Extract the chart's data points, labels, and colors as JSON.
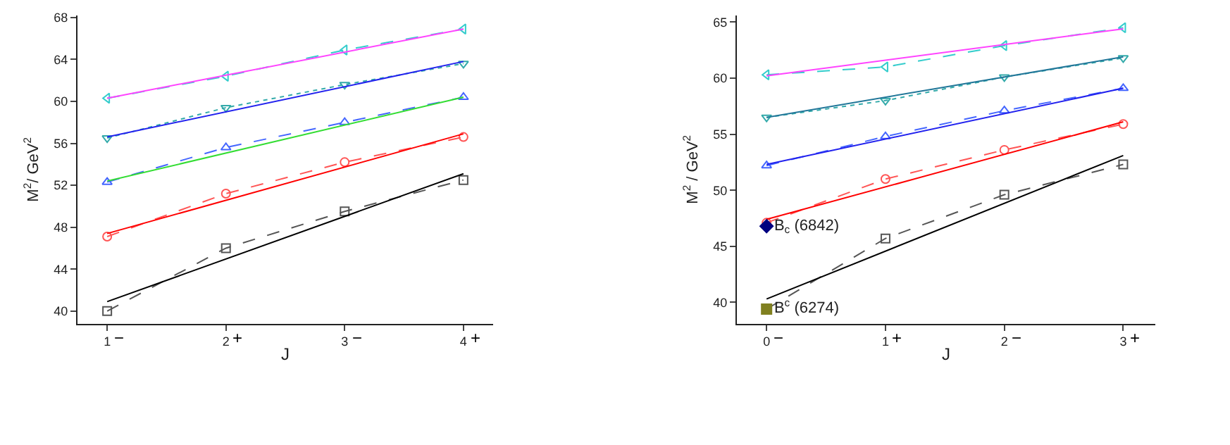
{
  "chart_data": [
    {
      "type": "line",
      "xlabel": "J",
      "ylabel": "M$^{2}$/ GeV$^{2}$",
      "xlim": [
        0.75,
        4.25
      ],
      "ylim": [
        38.8,
        68.2
      ],
      "xticks": [
        1,
        2,
        3,
        4
      ],
      "yticks": [
        40,
        44,
        48,
        52,
        56,
        60,
        64,
        68
      ],
      "legend": false,
      "series": [
        {
          "type": "line",
          "x": [
            1,
            2,
            3,
            4
          ],
          "values": [
            40.0,
            46.0,
            49.5,
            52.5
          ],
          "color": "#555555",
          "marker": "square",
          "line_style": "dashed"
        },
        {
          "type": "line",
          "x": [
            1,
            4
          ],
          "values": [
            40.9,
            53.1
          ],
          "color": "#000000",
          "marker": "none",
          "line_style": "solid"
        },
        {
          "type": "line",
          "x": [
            1,
            2,
            3,
            4
          ],
          "values": [
            47.1,
            51.2,
            54.2,
            56.6
          ],
          "color": "#ff5555",
          "marker": "circle",
          "line_style": "dashed"
        },
        {
          "type": "line",
          "x": [
            1,
            4
          ],
          "values": [
            47.4,
            56.9
          ],
          "color": "#ff0000",
          "marker": "none",
          "line_style": "solid"
        },
        {
          "type": "line",
          "x": [
            1,
            2,
            3,
            4
          ],
          "values": [
            52.3,
            55.6,
            58.0,
            60.4
          ],
          "color": "#4466ff",
          "marker": "triangle",
          "line_style": "dashed"
        },
        {
          "type": "line",
          "x": [
            1,
            4
          ],
          "values": [
            52.4,
            60.4
          ],
          "color": "#33dd33",
          "marker": "none",
          "line_style": "solid"
        },
        {
          "type": "line",
          "x": [
            1,
            2,
            3,
            4
          ],
          "values": [
            56.5,
            59.4,
            61.6,
            63.6
          ],
          "color": "#33aaaa",
          "marker": "triangle-down",
          "line_style": "dotted"
        },
        {
          "type": "line",
          "x": [
            1,
            4
          ],
          "values": [
            56.6,
            63.8
          ],
          "color": "#2222ee",
          "marker": "none",
          "line_style": "solid"
        },
        {
          "type": "line",
          "x": [
            1,
            2,
            3,
            4
          ],
          "values": [
            60.3,
            62.4,
            64.9,
            66.9
          ],
          "color": "#33cccc",
          "marker": "triangle-left",
          "line_style": "dashed"
        },
        {
          "type": "line",
          "x": [
            1,
            4
          ],
          "values": [
            60.3,
            66.9
          ],
          "color": "#ff44ff",
          "marker": "none",
          "line_style": "solid"
        }
      ],
      "annotations": [
        "−",
        "+",
        "−",
        "+"
      ]
    },
    {
      "type": "line",
      "xlabel": "J",
      "ylabel": "M$^{2}$ / GeV$^{2}$",
      "xlim": [
        -0.25,
        3.27
      ],
      "ylim": [
        38.1,
        65.6
      ],
      "xticks": [
        0,
        1,
        2,
        3
      ],
      "yticks": [
        40,
        45,
        50,
        55,
        60,
        65
      ],
      "legend": false,
      "series": [
        {
          "type": "line",
          "x": [
            0,
            1,
            2,
            3
          ],
          "values": [
            39.4,
            45.7,
            49.6,
            52.3
          ],
          "color": "#555555",
          "marker": "square",
          "line_style": "dashed"
        },
        {
          "type": "line",
          "x": [
            0,
            3
          ],
          "values": [
            40.3,
            53.1
          ],
          "color": "#000000",
          "marker": "none",
          "line_style": "solid"
        },
        {
          "type": "line",
          "x": [
            0,
            1,
            2,
            3
          ],
          "values": [
            47.1,
            51.0,
            53.6,
            55.9
          ],
          "color": "#ff5555",
          "marker": "circle",
          "line_style": "dashed"
        },
        {
          "type": "line",
          "x": [
            0,
            3
          ],
          "values": [
            47.4,
            56.1
          ],
          "color": "#ff0000",
          "marker": "none",
          "line_style": "solid"
        },
        {
          "type": "line",
          "x": [
            0,
            1,
            2,
            3
          ],
          "values": [
            52.2,
            54.8,
            57.1,
            59.1
          ],
          "color": "#4466ff",
          "marker": "triangle",
          "line_style": "dashed"
        },
        {
          "type": "line",
          "x": [
            0,
            3
          ],
          "values": [
            52.3,
            59.1
          ],
          "color": "#2222ee",
          "marker": "none",
          "line_style": "solid"
        },
        {
          "type": "line",
          "x": [
            0,
            1,
            2,
            3
          ],
          "values": [
            56.5,
            58.0,
            60.1,
            61.8
          ],
          "color": "#33aaaa",
          "marker": "triangle-down",
          "line_style": "dotted"
        },
        {
          "type": "line",
          "x": [
            0,
            3
          ],
          "values": [
            56.5,
            61.9
          ],
          "color": "#227799",
          "marker": "none",
          "line_style": "solid"
        },
        {
          "type": "line",
          "x": [
            0,
            1,
            2,
            3
          ],
          "values": [
            60.3,
            61.0,
            62.9,
            64.5
          ],
          "color": "#33cccc",
          "marker": "triangle-left",
          "line_style": "dashed"
        },
        {
          "type": "line",
          "x": [
            0,
            3
          ],
          "values": [
            60.2,
            64.4
          ],
          "color": "#ff44ff",
          "marker": "none",
          "line_style": "solid"
        },
        {
          "type": "scatter",
          "name": "B$_{c}$ (6842)",
          "x": [
            0
          ],
          "values": [
            46.8
          ],
          "color": "#000080",
          "marker": "diamond"
        },
        {
          "type": "scatter",
          "name": "B$^{c}$ (6274)",
          "x": [
            0
          ],
          "values": [
            39.4
          ],
          "color": "#808020",
          "marker": "square"
        }
      ],
      "annotations": [
        "−",
        "+",
        "−",
        "+"
      ]
    }
  ]
}
